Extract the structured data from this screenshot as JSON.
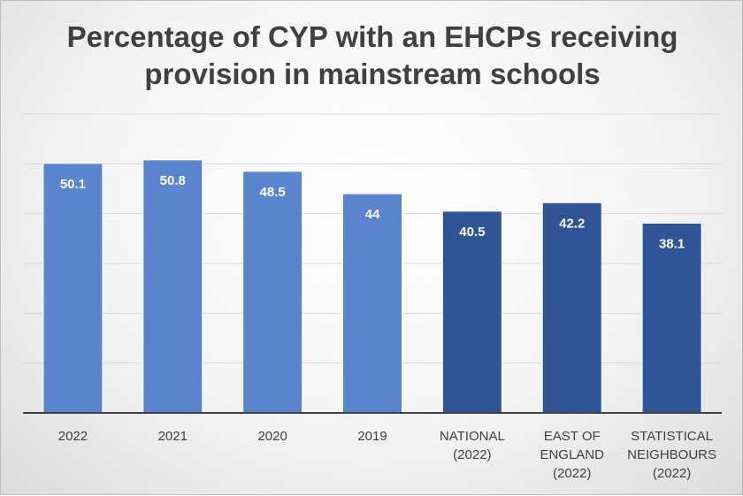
{
  "chart_data": {
    "type": "bar",
    "title": "Percentage of CYP with an EHCPs receiving provision in mainstream schools",
    "categories": [
      [
        "2022"
      ],
      [
        "2021"
      ],
      [
        "2020"
      ],
      [
        "2019"
      ],
      [
        "NATIONAL",
        "(2022)"
      ],
      [
        "EAST OF",
        "ENGLAND",
        "(2022)"
      ],
      [
        "STATISTICAL",
        "NEIGHBOURS",
        "(2022)"
      ]
    ],
    "values": [
      50.1,
      50.8,
      48.5,
      44,
      40.5,
      42.2,
      38.1
    ],
    "bar_colors": [
      "#5b84cf",
      "#5b84cf",
      "#5b84cf",
      "#5b84cf",
      "#2f5597",
      "#2f5597",
      "#2f5597"
    ],
    "ylim": [
      0,
      60
    ],
    "grid": true,
    "xlabel": "",
    "ylabel": ""
  }
}
